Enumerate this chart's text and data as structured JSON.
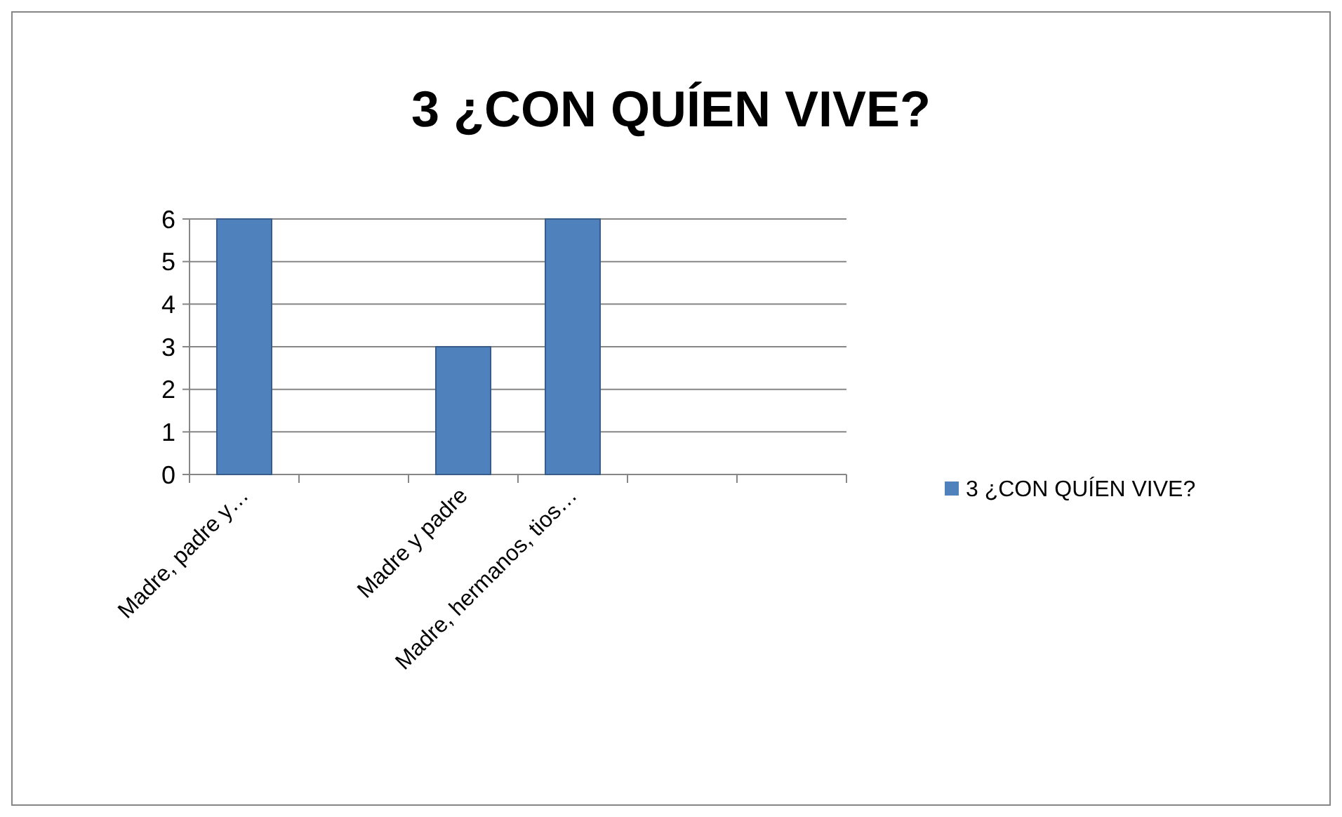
{
  "chart_data": {
    "type": "bar",
    "title": "3 ¿CON QUÍEN VIVE?",
    "categories": [
      "Madre, padre y…",
      null,
      "Madre y padre",
      "Madre, hermanos, tios…",
      null,
      null
    ],
    "series": [
      {
        "name": "3 ¿CON QUÍEN VIVE?",
        "color": "#4f81bd",
        "values": [
          6,
          null,
          3,
          6,
          null,
          null
        ]
      }
    ],
    "ylim": [
      0,
      6
    ],
    "yticks": [
      0,
      1,
      2,
      3,
      4,
      5,
      6
    ],
    "grid": "y",
    "legend": "right"
  }
}
